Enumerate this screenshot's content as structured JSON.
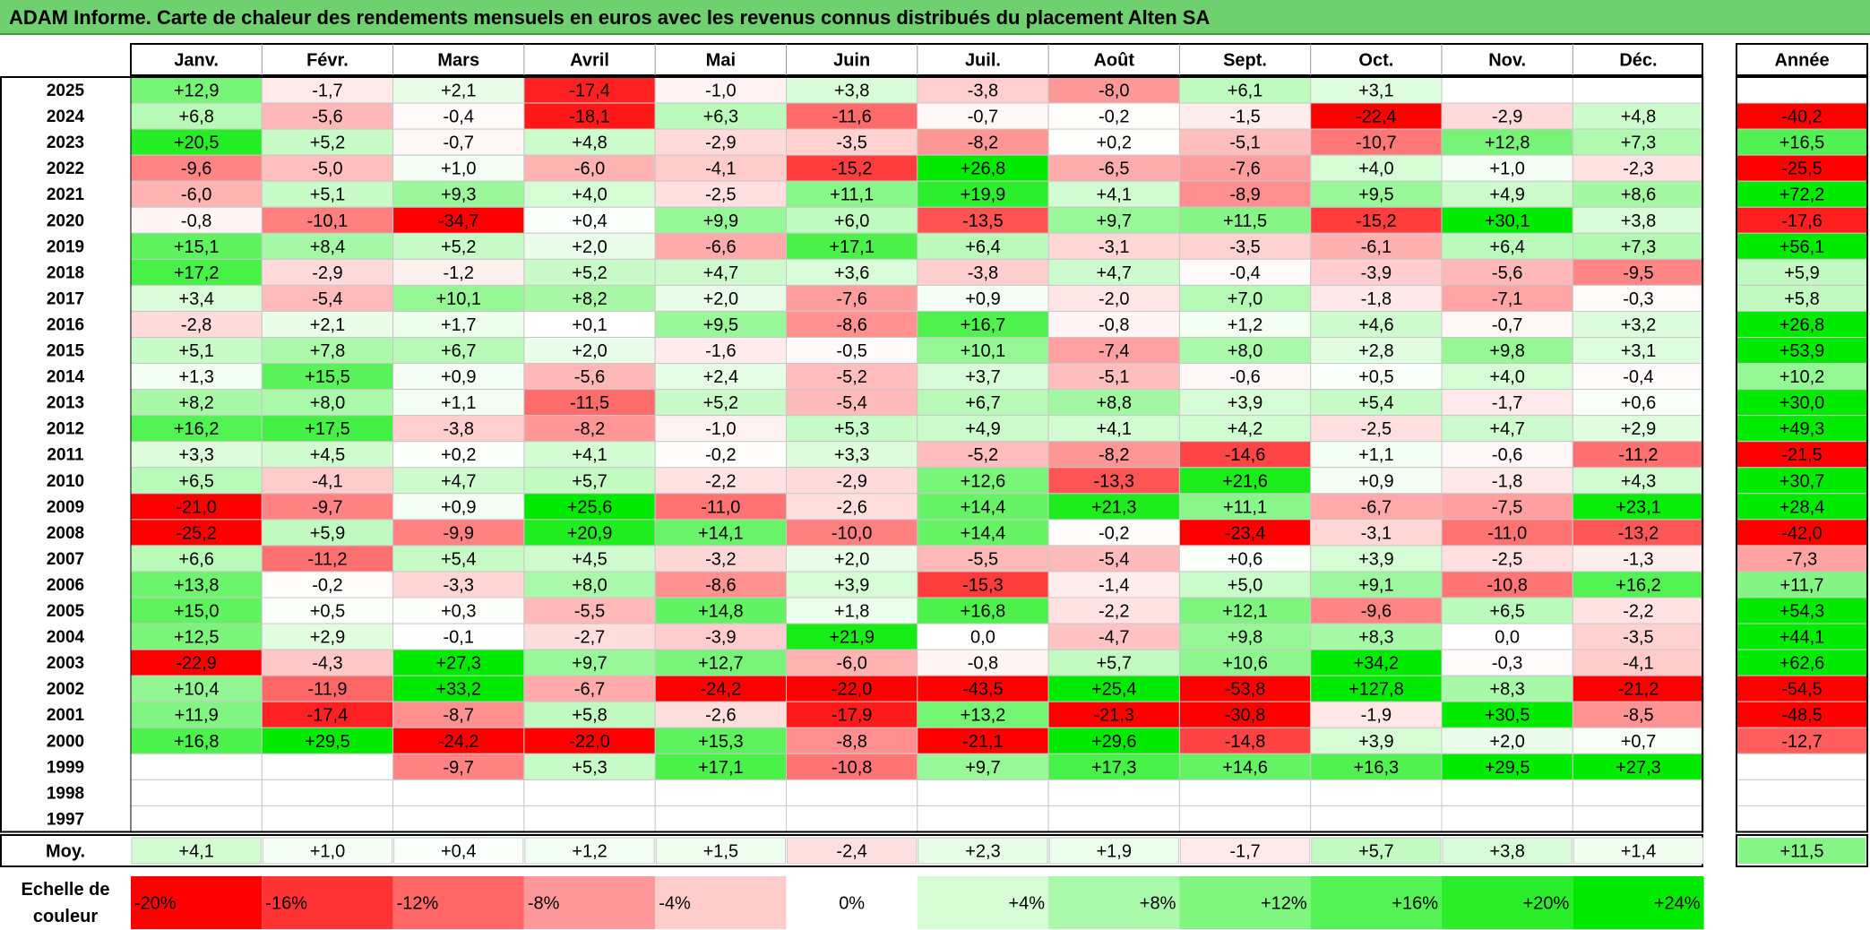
{
  "title": "ADAM Informe. Carte de chaleur des rendements mensuels en euros avec les revenus connus distribués du placement Alten SA",
  "colors": {
    "negative": "#ff0000",
    "positive": "#00ee00",
    "neutral": "#ffffff",
    "title_bar": "#6ed06e"
  },
  "chart_data": {
    "type": "heatmap",
    "title": "ADAM Informe. Carte de chaleur des rendements mensuels en euros avec les revenus connus distribués du placement Alten SA",
    "months": [
      "Janv.",
      "Févr.",
      "Mars",
      "Avril",
      "Mai",
      "Juin",
      "Juil.",
      "Août",
      "Sept.",
      "Oct.",
      "Nov.",
      "Déc."
    ],
    "year_header": "Année",
    "rows": [
      {
        "year": "2025",
        "values": [
          "+12,9",
          "-1,7",
          "+2,1",
          "-17,4",
          "-1,0",
          "+3,8",
          "-3,8",
          "-8,0",
          "+6,1",
          "+3,1",
          "",
          ""
        ],
        "annual": ""
      },
      {
        "year": "2024",
        "values": [
          "+6,8",
          "-5,6",
          "-0,4",
          "-18,1",
          "+6,3",
          "-11,6",
          "-0,7",
          "-0,2",
          "-1,5",
          "-22,4",
          "-2,9",
          "+4,8"
        ],
        "annual": "-40,2"
      },
      {
        "year": "2023",
        "values": [
          "+20,5",
          "+5,2",
          "-0,7",
          "+4,8",
          "-2,9",
          "-3,5",
          "-8,2",
          "+0,2",
          "-5,1",
          "-10,7",
          "+12,8",
          "+7,3"
        ],
        "annual": "+16,5"
      },
      {
        "year": "2022",
        "values": [
          "-9,6",
          "-5,0",
          "+1,0",
          "-6,0",
          "-4,1",
          "-15,2",
          "+26,8",
          "-6,5",
          "-7,6",
          "+4,0",
          "+1,0",
          "-2,3"
        ],
        "annual": "-25,5"
      },
      {
        "year": "2021",
        "values": [
          "-6,0",
          "+5,1",
          "+9,3",
          "+4,0",
          "-2,5",
          "+11,1",
          "+19,9",
          "+4,1",
          "-8,9",
          "+9,5",
          "+4,9",
          "+8,6"
        ],
        "annual": "+72,2"
      },
      {
        "year": "2020",
        "values": [
          "-0,8",
          "-10,1",
          "-34,7",
          "+0,4",
          "+9,9",
          "+6,0",
          "-13,5",
          "+9,7",
          "+11,5",
          "-15,2",
          "+30,1",
          "+3,8"
        ],
        "annual": "-17,6"
      },
      {
        "year": "2019",
        "values": [
          "+15,1",
          "+8,4",
          "+5,2",
          "+2,0",
          "-6,6",
          "+17,1",
          "+6,4",
          "-3,1",
          "-3,5",
          "-6,1",
          "+6,4",
          "+7,3"
        ],
        "annual": "+56,1"
      },
      {
        "year": "2018",
        "values": [
          "+17,2",
          "-2,9",
          "-1,2",
          "+5,2",
          "+4,7",
          "+3,6",
          "-3,8",
          "+4,7",
          "-0,4",
          "-3,9",
          "-5,6",
          "-9,5"
        ],
        "annual": "+5,9"
      },
      {
        "year": "2017",
        "values": [
          "+3,4",
          "-5,4",
          "+10,1",
          "+8,2",
          "+2,0",
          "-7,6",
          "+0,9",
          "-2,0",
          "+7,0",
          "-1,8",
          "-7,1",
          "-0,3"
        ],
        "annual": "+5,8"
      },
      {
        "year": "2016",
        "values": [
          "-2,8",
          "+2,1",
          "+1,7",
          "+0,1",
          "+9,5",
          "-8,6",
          "+16,7",
          "-0,8",
          "+1,2",
          "+4,6",
          "-0,7",
          "+3,2"
        ],
        "annual": "+26,8"
      },
      {
        "year": "2015",
        "values": [
          "+5,1",
          "+7,8",
          "+6,7",
          "+2,0",
          "-1,6",
          "-0,5",
          "+10,1",
          "-7,4",
          "+8,0",
          "+2,8",
          "+9,8",
          "+3,1"
        ],
        "annual": "+53,9"
      },
      {
        "year": "2014",
        "values": [
          "+1,3",
          "+15,5",
          "+0,9",
          "-5,6",
          "+2,4",
          "-5,2",
          "+3,7",
          "-5,1",
          "-0,6",
          "+0,5",
          "+4,0",
          "-0,4"
        ],
        "annual": "+10,2"
      },
      {
        "year": "2013",
        "values": [
          "+8,2",
          "+8,0",
          "+1,1",
          "-11,5",
          "+5,2",
          "-5,4",
          "+6,7",
          "+8,8",
          "+3,9",
          "+5,4",
          "-1,7",
          "+0,6"
        ],
        "annual": "+30,0"
      },
      {
        "year": "2012",
        "values": [
          "+16,2",
          "+17,5",
          "-3,8",
          "-8,2",
          "-1,0",
          "+5,3",
          "+4,9",
          "+4,1",
          "+4,2",
          "-2,5",
          "+4,7",
          "+2,9"
        ],
        "annual": "+49,3"
      },
      {
        "year": "2011",
        "values": [
          "+3,3",
          "+4,5",
          "+0,2",
          "+4,1",
          "-0,2",
          "+3,3",
          "-5,2",
          "-8,2",
          "-14,6",
          "+1,1",
          "-0,6",
          "-11,2"
        ],
        "annual": "-21,5"
      },
      {
        "year": "2010",
        "values": [
          "+6,5",
          "-4,1",
          "+4,7",
          "+5,7",
          "-2,2",
          "-2,9",
          "+12,6",
          "-13,3",
          "+21,6",
          "+0,9",
          "-1,8",
          "+4,3"
        ],
        "annual": "+30,7"
      },
      {
        "year": "2009",
        "values": [
          "-21,0",
          "-9,7",
          "+0,9",
          "+25,6",
          "-11,0",
          "-2,6",
          "+14,4",
          "+21,3",
          "+11,1",
          "-6,7",
          "-7,5",
          "+23,1"
        ],
        "annual": "+28,4"
      },
      {
        "year": "2008",
        "values": [
          "-25,2",
          "+5,9",
          "-9,9",
          "+20,9",
          "+14,1",
          "-10,0",
          "+14,4",
          "-0,2",
          "-23,4",
          "-3,1",
          "-11,0",
          "-13,2"
        ],
        "annual": "-42,0"
      },
      {
        "year": "2007",
        "values": [
          "+6,6",
          "-11,2",
          "+5,4",
          "+4,5",
          "-3,2",
          "+2,0",
          "-5,5",
          "-5,4",
          "+0,6",
          "+3,9",
          "-2,5",
          "-1,3"
        ],
        "annual": "-7,3"
      },
      {
        "year": "2006",
        "values": [
          "+13,8",
          "-0,2",
          "-3,3",
          "+8,0",
          "-8,6",
          "+3,9",
          "-15,3",
          "-1,4",
          "+5,0",
          "+9,1",
          "-10,8",
          "+16,2"
        ],
        "annual": "+11,7"
      },
      {
        "year": "2005",
        "values": [
          "+15,0",
          "+0,5",
          "+0,3",
          "-5,5",
          "+14,8",
          "+1,8",
          "+16,8",
          "-2,2",
          "+12,1",
          "-9,6",
          "+6,5",
          "-2,2"
        ],
        "annual": "+54,3"
      },
      {
        "year": "2004",
        "values": [
          "+12,5",
          "+2,9",
          "-0,1",
          "-2,7",
          "-3,9",
          "+21,9",
          "0,0",
          "-4,7",
          "+9,8",
          "+8,3",
          "0,0",
          "-3,5"
        ],
        "annual": "+44,1"
      },
      {
        "year": "2003",
        "values": [
          "-22,9",
          "-4,3",
          "+27,3",
          "+9,7",
          "+12,7",
          "-6,0",
          "-0,8",
          "+5,7",
          "+10,6",
          "+34,2",
          "-0,3",
          "-4,1"
        ],
        "annual": "+62,6"
      },
      {
        "year": "2002",
        "values": [
          "+10,4",
          "-11,9",
          "+33,2",
          "-6,7",
          "-24,2",
          "-22,0",
          "-43,5",
          "+25,4",
          "-53,8",
          "+127,8",
          "+8,3",
          "-21,2"
        ],
        "annual": "-54,5"
      },
      {
        "year": "2001",
        "values": [
          "+11,9",
          "-17,4",
          "-8,7",
          "+5,8",
          "-2,6",
          "-17,9",
          "+13,2",
          "-21,3",
          "-30,8",
          "-1,9",
          "+30,5",
          "-8,5"
        ],
        "annual": "-48,5"
      },
      {
        "year": "2000",
        "values": [
          "+16,8",
          "+29,5",
          "-24,2",
          "-22,0",
          "+15,3",
          "-8,8",
          "-21,1",
          "+29,6",
          "-14,8",
          "+3,9",
          "+2,0",
          "+0,7"
        ],
        "annual": "-12,7"
      },
      {
        "year": "1999",
        "values": [
          "",
          "",
          "-9,7",
          "+5,3",
          "+17,1",
          "-10,8",
          "+9,7",
          "+17,3",
          "+14,6",
          "+16,3",
          "+29,5",
          "+27,3"
        ],
        "annual": ""
      },
      {
        "year": "1998",
        "values": [
          "",
          "",
          "",
          "",
          "",
          "",
          "",
          "",
          "",
          "",
          "",
          ""
        ],
        "annual": ""
      },
      {
        "year": "1997",
        "values": [
          "",
          "",
          "",
          "",
          "",
          "",
          "",
          "",
          "",
          "",
          "",
          ""
        ],
        "annual": ""
      }
    ],
    "average": {
      "label": "Moy.",
      "values": [
        "+4,1",
        "+1,0",
        "+0,4",
        "+1,2",
        "+1,5",
        "-2,4",
        "+2,3",
        "+1,9",
        "-1,7",
        "+5,7",
        "+3,8",
        "+1,4"
      ],
      "annual": "+11,5"
    },
    "color_scale": {
      "label": "Echelle de couleur",
      "stops": [
        "-20%",
        "-16%",
        "-12%",
        "-8%",
        "-4%",
        "0%",
        "+4%",
        "+8%",
        "+12%",
        "+16%",
        "+20%",
        "+24%"
      ],
      "values": [
        -20,
        -16,
        -12,
        -8,
        -4,
        0,
        4,
        8,
        12,
        16,
        20,
        24
      ]
    }
  }
}
